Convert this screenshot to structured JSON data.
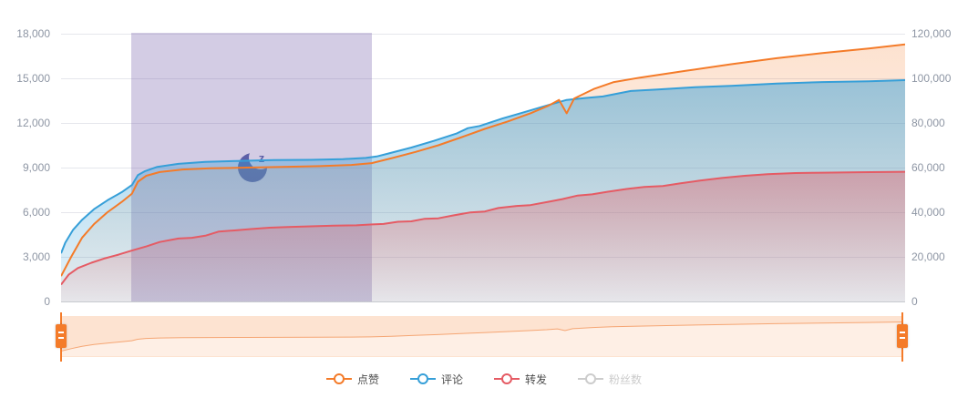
{
  "legend": {
    "items": [
      {
        "label": "点赞",
        "color": "#f47b29",
        "disabled": false
      },
      {
        "label": "评论",
        "color": "#369fd8",
        "disabled": false
      },
      {
        "label": "转发",
        "color": "#e55b64",
        "disabled": false
      },
      {
        "label": "粉丝数",
        "color": "#cccccc",
        "disabled": true
      }
    ]
  },
  "chart_data": {
    "type": "line",
    "title": "",
    "left_axis": {
      "min": 0,
      "max": 18000,
      "ticks": [
        "0",
        "3,000",
        "6,000",
        "9,000",
        "12,000",
        "15,000",
        "18,000"
      ]
    },
    "right_axis": {
      "min": 0,
      "max": 120000,
      "ticks": [
        "0",
        "20,000",
        "40,000",
        "60,000",
        "80,000",
        "100,000",
        "120,000"
      ]
    },
    "layout": {
      "grid_color": "#e5e6ec",
      "axis_line_color": "#c7cacf",
      "label_color": "#8e96a4",
      "legend_position": "bottom"
    },
    "highlight_region": {
      "name": "sleep-period",
      "start_pct": 8.3,
      "end_pct": 36.8,
      "color": "rgba(108,85,165,0.30)"
    },
    "sleep_mark": {
      "icon": "crescent-moon-z-icon",
      "label": "z",
      "color": "#5c5fa7",
      "x_pct": 22.9,
      "value": 9000
    },
    "series": [
      {
        "name": "点赞",
        "axis": "left",
        "color": "#f47b29",
        "fill_opacity": [
          0.22,
          0.04
        ],
        "line_order": 3,
        "hidden": false,
        "points": [
          [
            0.0,
            1710
          ],
          [
            1.2,
            3000
          ],
          [
            2.5,
            4300
          ],
          [
            3.9,
            5200
          ],
          [
            5.5,
            6000
          ],
          [
            7.2,
            6700
          ],
          [
            8.4,
            7250
          ],
          [
            9.1,
            8050
          ],
          [
            10.1,
            8450
          ],
          [
            11.7,
            8700
          ],
          [
            14.4,
            8870
          ],
          [
            17.7,
            8950
          ],
          [
            22.0,
            9000
          ],
          [
            26.3,
            9050
          ],
          [
            30.7,
            9100
          ],
          [
            34.4,
            9180
          ],
          [
            36.8,
            9300
          ],
          [
            39.3,
            9650
          ],
          [
            42.0,
            10050
          ],
          [
            44.7,
            10500
          ],
          [
            47.5,
            11050
          ],
          [
            50.2,
            11600
          ],
          [
            52.9,
            12100
          ],
          [
            55.6,
            12650
          ],
          [
            57.7,
            13150
          ],
          [
            59.0,
            13550
          ],
          [
            59.9,
            12650
          ],
          [
            60.8,
            13650
          ],
          [
            63.2,
            14300
          ],
          [
            65.5,
            14750
          ],
          [
            68.6,
            15050
          ],
          [
            74.0,
            15500
          ],
          [
            79.4,
            15950
          ],
          [
            84.8,
            16350
          ],
          [
            90.2,
            16700
          ],
          [
            95.7,
            17000
          ],
          [
            100.0,
            17280
          ]
        ]
      },
      {
        "name": "评论",
        "axis": "left",
        "color": "#369fd8",
        "fill_opacity": [
          0.5,
          0.12
        ],
        "line_order": 1,
        "hidden": false,
        "points": [
          [
            0.0,
            3240
          ],
          [
            0.5,
            3950
          ],
          [
            1.4,
            4800
          ],
          [
            2.5,
            5500
          ],
          [
            3.9,
            6200
          ],
          [
            5.5,
            6800
          ],
          [
            7.2,
            7350
          ],
          [
            8.4,
            7830
          ],
          [
            9.1,
            8500
          ],
          [
            9.9,
            8750
          ],
          [
            11.4,
            9050
          ],
          [
            13.9,
            9250
          ],
          [
            17.1,
            9380
          ],
          [
            20.9,
            9450
          ],
          [
            25.2,
            9500
          ],
          [
            29.6,
            9520
          ],
          [
            33.4,
            9570
          ],
          [
            36.1,
            9650
          ],
          [
            37.4,
            9750
          ],
          [
            38.8,
            9950
          ],
          [
            41.5,
            10350
          ],
          [
            44.2,
            10800
          ],
          [
            46.9,
            11300
          ],
          [
            48.2,
            11650
          ],
          [
            49.6,
            11800
          ],
          [
            52.3,
            12300
          ],
          [
            55.0,
            12750
          ],
          [
            57.7,
            13200
          ],
          [
            59.9,
            13550
          ],
          [
            62.1,
            13680
          ],
          [
            64.2,
            13780
          ],
          [
            67.5,
            14150
          ],
          [
            70.7,
            14250
          ],
          [
            75.1,
            14400
          ],
          [
            79.4,
            14500
          ],
          [
            84.8,
            14650
          ],
          [
            90.2,
            14750
          ],
          [
            95.7,
            14800
          ],
          [
            100.0,
            14880
          ]
        ]
      },
      {
        "name": "转发",
        "axis": "left",
        "color": "#e55b64",
        "fill_opacity": [
          0.42,
          0.06
        ],
        "line_order": 2,
        "hidden": false,
        "points": [
          [
            0.0,
            1130
          ],
          [
            0.9,
            1800
          ],
          [
            2.0,
            2250
          ],
          [
            3.6,
            2600
          ],
          [
            5.2,
            2900
          ],
          [
            6.8,
            3150
          ],
          [
            8.4,
            3420
          ],
          [
            10.1,
            3700
          ],
          [
            11.7,
            4000
          ],
          [
            13.9,
            4230
          ],
          [
            15.5,
            4280
          ],
          [
            17.1,
            4420
          ],
          [
            18.7,
            4700
          ],
          [
            20.7,
            4780
          ],
          [
            22.5,
            4870
          ],
          [
            24.7,
            4960
          ],
          [
            26.9,
            5000
          ],
          [
            29.6,
            5050
          ],
          [
            32.3,
            5100
          ],
          [
            35.0,
            5120
          ],
          [
            36.9,
            5180
          ],
          [
            38.2,
            5210
          ],
          [
            39.9,
            5360
          ],
          [
            41.5,
            5390
          ],
          [
            43.1,
            5560
          ],
          [
            44.7,
            5590
          ],
          [
            46.4,
            5780
          ],
          [
            48.5,
            5990
          ],
          [
            50.2,
            6050
          ],
          [
            51.8,
            6280
          ],
          [
            54.0,
            6420
          ],
          [
            55.6,
            6480
          ],
          [
            57.7,
            6700
          ],
          [
            59.4,
            6880
          ],
          [
            61.2,
            7120
          ],
          [
            62.9,
            7200
          ],
          [
            64.8,
            7380
          ],
          [
            67.0,
            7560
          ],
          [
            69.1,
            7700
          ],
          [
            71.3,
            7760
          ],
          [
            73.4,
            7950
          ],
          [
            75.6,
            8120
          ],
          [
            78.3,
            8300
          ],
          [
            81.0,
            8450
          ],
          [
            83.7,
            8560
          ],
          [
            87.0,
            8630
          ],
          [
            90.2,
            8660
          ],
          [
            94.6,
            8690
          ],
          [
            100.0,
            8720
          ]
        ]
      },
      {
        "name": "粉丝数",
        "axis": "right",
        "color": "#cccccc",
        "fill_opacity": [
          0,
          0
        ],
        "line_order": 0,
        "hidden": true,
        "points": []
      }
    ]
  },
  "datazoom": {
    "start_pct": 0,
    "end_pct": 100,
    "track_color": "rgba(244,123,41,0.12)",
    "shadow_color": "rgba(244,123,41,0.10)",
    "preview_line_color": "#f5a674",
    "handle_color": "#f47b29",
    "preview_series": "点赞"
  }
}
